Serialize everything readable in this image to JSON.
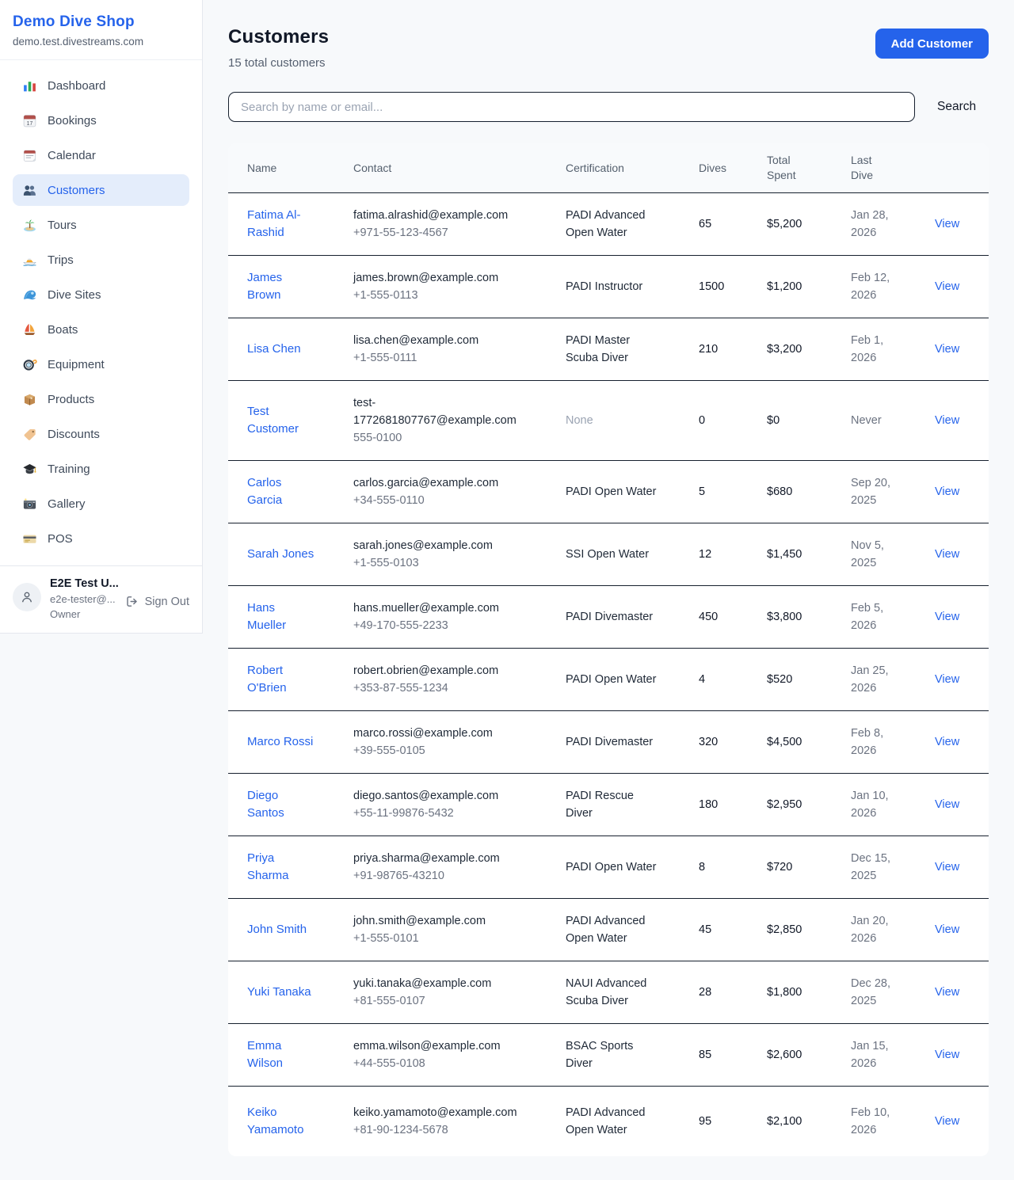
{
  "sidebar": {
    "brand": {
      "title": "Demo Dive Shop",
      "subdomain": "demo.test.divestreams.com"
    },
    "items": [
      {
        "label": "Dashboard",
        "icon": "dashboard-icon",
        "active": false
      },
      {
        "label": "Bookings",
        "icon": "bookings-icon",
        "active": false
      },
      {
        "label": "Calendar",
        "icon": "calendar-icon",
        "active": false
      },
      {
        "label": "Customers",
        "icon": "customers-icon",
        "active": true
      },
      {
        "label": "Tours",
        "icon": "tours-icon",
        "active": false
      },
      {
        "label": "Trips",
        "icon": "trips-icon",
        "active": false
      },
      {
        "label": "Dive Sites",
        "icon": "dive-sites-icon",
        "active": false
      },
      {
        "label": "Boats",
        "icon": "boats-icon",
        "active": false
      },
      {
        "label": "Equipment",
        "icon": "equipment-icon",
        "active": false
      },
      {
        "label": "Products",
        "icon": "products-icon",
        "active": false
      },
      {
        "label": "Discounts",
        "icon": "discounts-icon",
        "active": false
      },
      {
        "label": "Training",
        "icon": "training-icon",
        "active": false
      },
      {
        "label": "Gallery",
        "icon": "gallery-icon",
        "active": false
      },
      {
        "label": "POS",
        "icon": "pos-icon",
        "active": false
      }
    ],
    "user": {
      "name": "E2E Test U...",
      "email": "e2e-tester@...",
      "role": "Owner",
      "signout_label": "Sign Out"
    }
  },
  "header": {
    "title": "Customers",
    "subtitle": "15 total customers",
    "add_button_label": "Add Customer"
  },
  "search": {
    "placeholder": "Search by name or email...",
    "button_label": "Search"
  },
  "table": {
    "columns": [
      "Name",
      "Contact",
      "Certification",
      "Dives",
      "Total Spent",
      "Last Dive"
    ],
    "view_label": "View",
    "rows": [
      {
        "name": "Fatima Al-Rashid",
        "email": "fatima.alrashid@example.com",
        "phone": "+971-55-123-4567",
        "certification": "PADI Advanced Open Water",
        "dives": "65",
        "total_spent": "$5,200",
        "last_dive": "Jan 28, 2026"
      },
      {
        "name": "James Brown",
        "email": "james.brown@example.com",
        "phone": "+1-555-0113",
        "certification": "PADI Instructor",
        "dives": "1500",
        "total_spent": "$1,200",
        "last_dive": "Feb 12, 2026"
      },
      {
        "name": "Lisa Chen",
        "email": "lisa.chen@example.com",
        "phone": "+1-555-0111",
        "certification": "PADI Master Scuba Diver",
        "dives": "210",
        "total_spent": "$3,200",
        "last_dive": "Feb 1, 2026"
      },
      {
        "name": "Test Customer",
        "email": "test-1772681807767@example.com",
        "phone": "555-0100",
        "certification": "None",
        "dives": "0",
        "total_spent": "$0",
        "last_dive": "Never"
      },
      {
        "name": "Carlos Garcia",
        "email": "carlos.garcia@example.com",
        "phone": "+34-555-0110",
        "certification": "PADI Open Water",
        "dives": "5",
        "total_spent": "$680",
        "last_dive": "Sep 20, 2025"
      },
      {
        "name": "Sarah Jones",
        "email": "sarah.jones@example.com",
        "phone": "+1-555-0103",
        "certification": "SSI Open Water",
        "dives": "12",
        "total_spent": "$1,450",
        "last_dive": "Nov 5, 2025"
      },
      {
        "name": "Hans Mueller",
        "email": "hans.mueller@example.com",
        "phone": "+49-170-555-2233",
        "certification": "PADI Divemaster",
        "dives": "450",
        "total_spent": "$3,800",
        "last_dive": "Feb 5, 2026"
      },
      {
        "name": "Robert O'Brien",
        "email": "robert.obrien@example.com",
        "phone": "+353-87-555-1234",
        "certification": "PADI Open Water",
        "dives": "4",
        "total_spent": "$520",
        "last_dive": "Jan 25, 2026"
      },
      {
        "name": "Marco Rossi",
        "email": "marco.rossi@example.com",
        "phone": "+39-555-0105",
        "certification": "PADI Divemaster",
        "dives": "320",
        "total_spent": "$4,500",
        "last_dive": "Feb 8, 2026"
      },
      {
        "name": "Diego Santos",
        "email": "diego.santos@example.com",
        "phone": "+55-11-99876-5432",
        "certification": "PADI Rescue Diver",
        "dives": "180",
        "total_spent": "$2,950",
        "last_dive": "Jan 10, 2026"
      },
      {
        "name": "Priya Sharma",
        "email": "priya.sharma@example.com",
        "phone": "+91-98765-43210",
        "certification": "PADI Open Water",
        "dives": "8",
        "total_spent": "$720",
        "last_dive": "Dec 15, 2025"
      },
      {
        "name": "John Smith",
        "email": "john.smith@example.com",
        "phone": "+1-555-0101",
        "certification": "PADI Advanced Open Water",
        "dives": "45",
        "total_spent": "$2,850",
        "last_dive": "Jan 20, 2026"
      },
      {
        "name": "Yuki Tanaka",
        "email": "yuki.tanaka@example.com",
        "phone": "+81-555-0107",
        "certification": "NAUI Advanced Scuba Diver",
        "dives": "28",
        "total_spent": "$1,800",
        "last_dive": "Dec 28, 2025"
      },
      {
        "name": "Emma Wilson",
        "email": "emma.wilson@example.com",
        "phone": "+44-555-0108",
        "certification": "BSAC Sports Diver",
        "dives": "85",
        "total_spent": "$2,600",
        "last_dive": "Jan 15, 2026"
      },
      {
        "name": "Keiko Yamamoto",
        "email": "keiko.yamamoto@example.com",
        "phone": "+81-90-1234-5678",
        "certification": "PADI Advanced Open Water",
        "dives": "95",
        "total_spent": "$2,100",
        "last_dive": "Feb 10, 2026"
      }
    ]
  },
  "colors": {
    "accent": "#2563eb",
    "active_nav_bg": "#e4edfb",
    "page_bg": "#f7f9fb",
    "row_border": "#16202e",
    "muted_text": "#9aa3b2"
  }
}
